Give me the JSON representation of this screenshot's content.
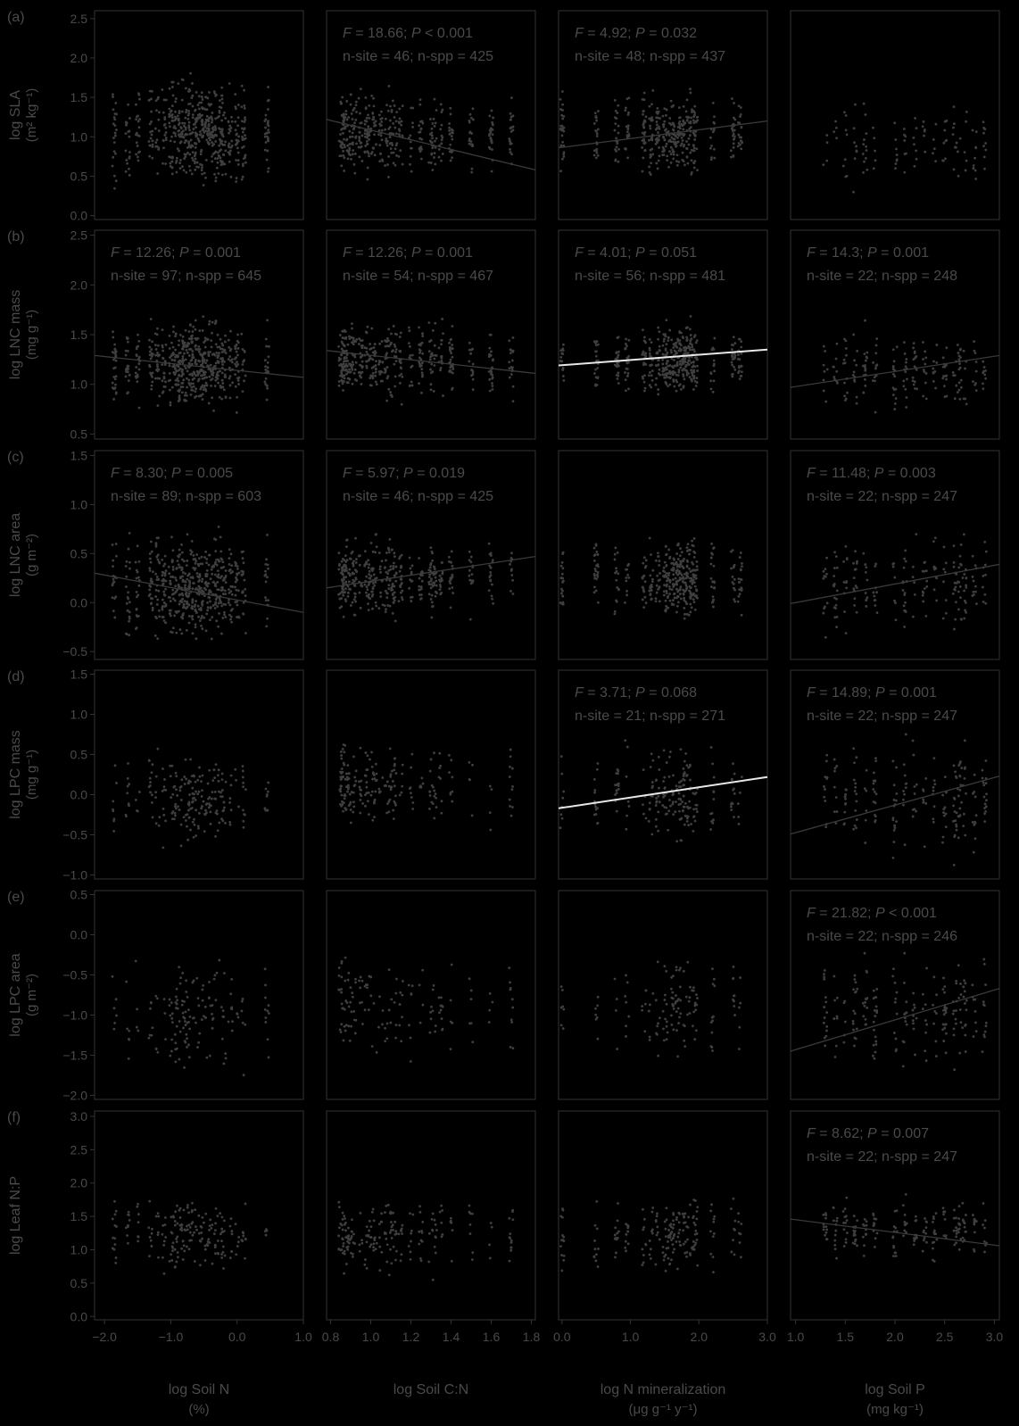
{
  "colors": {
    "background": "#000000",
    "frame": "#333333",
    "text": "#4a4a4a",
    "points": "#3f3f3f",
    "fit_dark": "#3a3a3a",
    "fit_white": "#e8e8e8"
  },
  "chart_data": {
    "type": "scatter",
    "columns": [
      {
        "xlabel": "log Soil N",
        "unit": "(%)",
        "xlim": [
          -2.15,
          1.0
        ],
        "ticks": [
          -2.0,
          -1.0,
          0.0,
          1.0
        ],
        "tick_labels": [
          "−2.0",
          "−1.0",
          "0.0",
          "1.0"
        ]
      },
      {
        "xlabel": "log Soil C:N",
        "unit": "",
        "xlim": [
          0.78,
          1.82
        ],
        "ticks": [
          0.8,
          1.0,
          1.2,
          1.4,
          1.6,
          1.8
        ],
        "tick_labels": [
          "0.8",
          "1.0",
          "1.2",
          "1.4",
          "1.6",
          "1.8"
        ]
      },
      {
        "xlabel": "log N mineralization",
        "unit": "(μg g⁻¹ y⁻¹)",
        "xlim": [
          -0.05,
          3.0
        ],
        "ticks": [
          0.0,
          1.0,
          2.0,
          3.0
        ],
        "tick_labels": [
          "0.0",
          "1.0",
          "2.0",
          "3.0"
        ]
      },
      {
        "xlabel": "log Soil P",
        "unit": "(mg kg⁻¹)",
        "xlim": [
          0.95,
          3.05
        ],
        "ticks": [
          1.0,
          1.5,
          2.0,
          2.5,
          3.0
        ],
        "tick_labels": [
          "1.0",
          "1.5",
          "2.0",
          "2.5",
          "3.0"
        ]
      }
    ],
    "rows": [
      {
        "tag": "(a)",
        "ylabel": "log SLA",
        "yunit": "(m² kg⁻¹)",
        "ylim": [
          -0.05,
          2.6
        ],
        "ticks": [
          0.0,
          0.5,
          1.0,
          1.5,
          2.0,
          2.5
        ],
        "tick_labels": [
          "0.0",
          "0.5",
          "1.0",
          "1.5",
          "2.0",
          "2.5"
        ],
        "panels": [
          {
            "stats": null
          },
          {
            "stats": {
              "F": "18.66",
              "P": "< 0.001",
              "n_site": "46",
              "n_spp": "425"
            },
            "fit": {
              "x": [
                0.78,
                1.82
              ],
              "y": [
                1.22,
                0.58
              ],
              "style": "dark"
            }
          },
          {
            "stats": {
              "F": "4.92",
              "P": "= 0.032",
              "n_site": "48",
              "n_spp": "437"
            },
            "fit": {
              "x": [
                -0.05,
                3.0
              ],
              "y": [
                0.86,
                1.2
              ],
              "style": "dark"
            }
          },
          {
            "stats": null
          }
        ]
      },
      {
        "tag": "(b)",
        "ylabel": "log LNC mass",
        "yunit": "(mg g⁻¹)",
        "ylim": [
          0.45,
          2.55
        ],
        "ticks": [
          0.5,
          1.0,
          1.5,
          2.0,
          2.5
        ],
        "tick_labels": [
          "0.5",
          "1.0",
          "1.5",
          "2.0",
          "2.5"
        ],
        "panels": [
          {
            "stats": {
              "F": "12.26",
              "P": "= 0.001",
              "n_site": "97",
              "n_spp": "645"
            },
            "fit": {
              "x": [
                -2.15,
                1.0
              ],
              "y": [
                1.29,
                1.07
              ],
              "style": "dark"
            }
          },
          {
            "stats": {
              "F": "12.26",
              "P": "= 0.001",
              "n_site": "54",
              "n_spp": "467"
            },
            "fit": {
              "x": [
                0.78,
                1.82
              ],
              "y": [
                1.34,
                1.11
              ],
              "style": "dark"
            }
          },
          {
            "stats": {
              "F": "4.01",
              "P": "= 0.051",
              "n_site": "56",
              "n_spp": "481"
            },
            "fit": {
              "x": [
                -0.05,
                3.0
              ],
              "y": [
                1.19,
                1.35
              ],
              "style": "white"
            }
          },
          {
            "stats": {
              "F": "14.3",
              "P": "= 0.001",
              "n_site": "22",
              "n_spp": "248"
            },
            "fit": {
              "x": [
                0.95,
                3.05
              ],
              "y": [
                0.97,
                1.29
              ],
              "style": "dark"
            }
          }
        ]
      },
      {
        "tag": "(c)",
        "ylabel": "log LNC area",
        "yunit": "(g m⁻²)",
        "ylim": [
          -0.58,
          1.55
        ],
        "ticks": [
          -0.5,
          0.0,
          0.5,
          1.0,
          1.5
        ],
        "tick_labels": [
          "−0.5",
          "0.0",
          "0.5",
          "1.0",
          "1.5"
        ],
        "panels": [
          {
            "stats": {
              "F": "8.30",
              "P": "= 0.005",
              "n_site": "89",
              "n_spp": "603"
            },
            "fit": {
              "x": [
                -2.15,
                1.0
              ],
              "y": [
                0.3,
                -0.1
              ],
              "style": "dark"
            }
          },
          {
            "stats": {
              "F": "5.97",
              "P": "= 0.019",
              "n_site": "46",
              "n_spp": "425"
            },
            "fit": {
              "x": [
                0.78,
                1.82
              ],
              "y": [
                0.15,
                0.47
              ],
              "style": "dark"
            }
          },
          {
            "stats": null
          },
          {
            "stats": {
              "F": "11.48",
              "P": "= 0.003",
              "n_site": "22",
              "n_spp": "247"
            },
            "fit": {
              "x": [
                0.95,
                3.05
              ],
              "y": [
                -0.01,
                0.39
              ],
              "style": "dark"
            }
          }
        ]
      },
      {
        "tag": "(d)",
        "ylabel": "log LPC mass",
        "yunit": "(mg g⁻¹)",
        "ylim": [
          -1.05,
          1.55
        ],
        "ticks": [
          -1.0,
          -0.5,
          0.0,
          0.5,
          1.0,
          1.5
        ],
        "tick_labels": [
          "−1.0",
          "−0.5",
          "0.0",
          "0.5",
          "1.0",
          "1.5"
        ],
        "panels": [
          {
            "stats": null
          },
          {
            "stats": null
          },
          {
            "stats": {
              "F": "3.71",
              "P": "= 0.068",
              "n_site": "21",
              "n_spp": "271"
            },
            "fit": {
              "x": [
                -0.05,
                3.0
              ],
              "y": [
                -0.17,
                0.22
              ],
              "style": "white"
            }
          },
          {
            "stats": {
              "F": "14.89",
              "P": "= 0.001",
              "n_site": "22",
              "n_spp": "247"
            },
            "fit": {
              "x": [
                0.95,
                3.05
              ],
              "y": [
                -0.49,
                0.23
              ],
              "style": "dark"
            }
          }
        ]
      },
      {
        "tag": "(e)",
        "ylabel": "log LPC area",
        "yunit": "(g m⁻²)",
        "ylim": [
          -2.05,
          0.55
        ],
        "ticks": [
          -2.0,
          -1.5,
          -1.0,
          -0.5,
          0.0,
          0.5
        ],
        "tick_labels": [
          "−2.0",
          "−1.5",
          "−1.0",
          "−0.5",
          "0.0",
          "0.5"
        ],
        "panels": [
          {
            "stats": null
          },
          {
            "stats": null
          },
          {
            "stats": null
          },
          {
            "stats": {
              "F": "21.82",
              "P": "< 0.001",
              "n_site": "22",
              "n_spp": "246"
            },
            "fit": {
              "x": [
                0.95,
                3.05
              ],
              "y": [
                -1.45,
                -0.67
              ],
              "style": "dark"
            }
          }
        ]
      },
      {
        "tag": "(f)",
        "ylabel": "log Leaf N:P",
        "yunit": "",
        "ylim": [
          -0.05,
          3.08
        ],
        "ticks": [
          0.0,
          0.5,
          1.0,
          1.5,
          2.0,
          2.5,
          3.0
        ],
        "tick_labels": [
          "0.0",
          "0.5",
          "1.0",
          "1.5",
          "2.0",
          "2.5",
          "3.0"
        ],
        "panels": [
          {
            "stats": null
          },
          {
            "stats": null
          },
          {
            "stats": null
          },
          {
            "stats": {
              "F": "8.62",
              "P": "= 0.007",
              "n_site": "22",
              "n_spp": "247"
            },
            "fit": {
              "x": [
                0.95,
                3.05
              ],
              "y": [
                1.46,
                1.06
              ],
              "style": "dark"
            }
          }
        ]
      }
    ],
    "scatter_clusters": {
      "note": "approximate point clusters (x position in data units, y mean, y spread, count)",
      "col0": {
        "x": [
          -1.85,
          -1.65,
          -1.5,
          -1.3,
          -1.2,
          -1.1,
          -1.0,
          -0.95,
          -0.9,
          -0.85,
          -0.8,
          -0.75,
          -0.7,
          -0.65,
          -0.6,
          -0.55,
          -0.5,
          -0.45,
          -0.4,
          -0.35,
          -0.3,
          -0.25,
          -0.2,
          -0.1,
          0.0,
          0.1,
          0.45
        ]
      },
      "col1": {
        "x": [
          0.85,
          0.86,
          0.87,
          0.88,
          0.9,
          0.92,
          0.95,
          0.98,
          1.0,
          1.02,
          1.05,
          1.08,
          1.1,
          1.12,
          1.15,
          1.2,
          1.25,
          1.3,
          1.32,
          1.35,
          1.4,
          1.5,
          1.6,
          1.7
        ]
      },
      "col2": {
        "x": [
          0.0,
          0.5,
          0.8,
          0.95,
          1.2,
          1.3,
          1.4,
          1.5,
          1.55,
          1.6,
          1.65,
          1.7,
          1.75,
          1.8,
          1.85,
          1.9,
          1.95,
          2.2,
          2.5,
          2.6
        ]
      },
      "col3": {
        "x": [
          1.3,
          1.4,
          1.5,
          1.6,
          1.7,
          1.8,
          2.0,
          2.1,
          2.2,
          2.3,
          2.4,
          2.5,
          2.6,
          2.65,
          2.7,
          2.8,
          2.9
        ]
      }
    }
  }
}
